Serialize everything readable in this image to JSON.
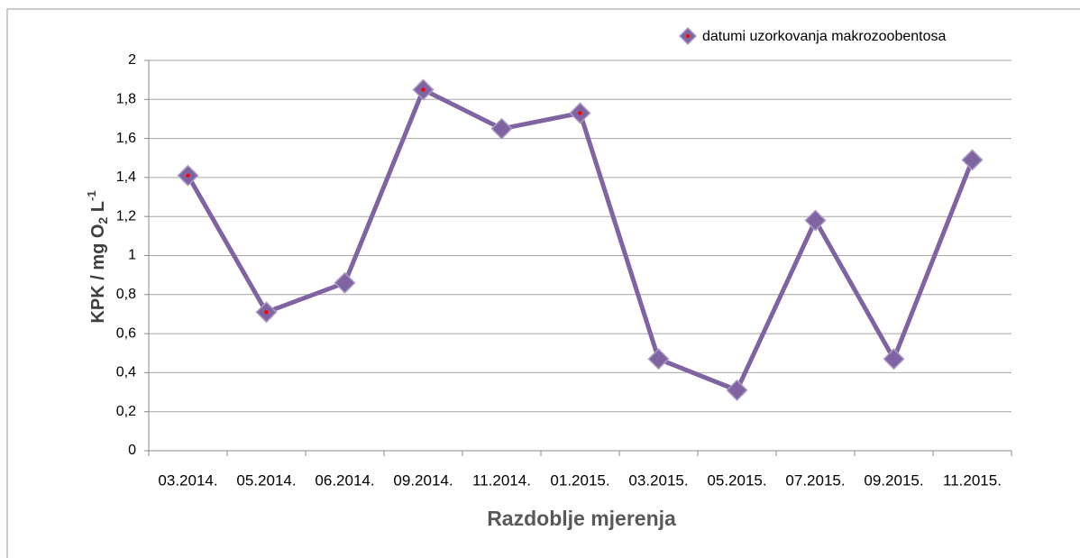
{
  "chart_data": {
    "type": "line",
    "x_label": "Razdoblje mjerenja",
    "y_label": [
      "KPK / mg O",
      "2",
      " L",
      "-1"
    ],
    "categories": [
      "03.2014.",
      "05.2014.",
      "06.2014.",
      "09.2014.",
      "11.2014.",
      "01.2015.",
      "03.2015.",
      "05.2015.",
      "07.2015.",
      "09.2015.",
      "11.2015."
    ],
    "series": [
      {
        "name": "datumi uzorkovanja makrozoobentosa",
        "color": "#8064a2",
        "values": [
          1.41,
          0.71,
          0.86,
          1.85,
          1.65,
          1.73,
          0.47,
          0.31,
          1.18,
          0.47,
          1.49
        ],
        "marked": [
          true,
          true,
          false,
          true,
          false,
          true,
          false,
          false,
          false,
          false,
          false
        ],
        "marker_dot_color": "#ff0000"
      }
    ],
    "ylim": [
      0,
      2
    ],
    "yticks": [
      0,
      {
        "value": 0.2,
        "label": "0,2"
      },
      {
        "value": 0.4,
        "label": "0,4"
      },
      {
        "value": 0.6,
        "label": "0,6"
      },
      {
        "value": 0.8,
        "label": "0,8"
      },
      1,
      {
        "value": 1.2,
        "label": "1,2"
      },
      {
        "value": 1.4,
        "label": "1,4"
      },
      {
        "value": 1.6,
        "label": "1,6"
      },
      {
        "value": 1.8,
        "label": "1,8"
      },
      2
    ],
    "grid": true,
    "legend": "top-right"
  }
}
